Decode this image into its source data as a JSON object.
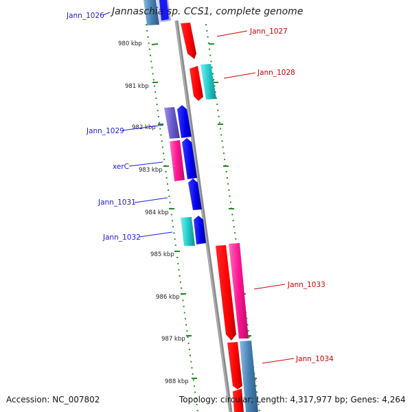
{
  "title": "Jannaschia sp. CCS1, complete genome",
  "accession_text": "Accession: NC_007802",
  "topology_text": "Topology: circular; Length: 4,317,977 bp; Genes: 4,264",
  "colors": {
    "backbone": "#8c8c8c",
    "tick": "#1e8a1e",
    "label_left": "#1c1cd0",
    "label_right": "#d00000",
    "gene_red": "#ff0000",
    "gene_blue": "#0000ee",
    "gene_cyan": "#22cccc",
    "gene_magenta": "#ff1493",
    "gene_purple": "#6a5acd",
    "gene_steel": "#4682b4"
  },
  "kbp_labels": [
    "980 kbp",
    "981 kbp",
    "982 kbp",
    "983 kbp",
    "984 kbp",
    "985 kbp",
    "986 kbp",
    "987 kbp",
    "988 kbp"
  ],
  "gene_labels": {
    "left": [
      "Jann_1026",
      "Jann_1029",
      "xerC",
      "Jann_1031",
      "Jann_1032"
    ],
    "right": [
      "Jann_1027",
      "Jann_1028",
      "Jann_1033",
      "Jann_1034"
    ]
  }
}
